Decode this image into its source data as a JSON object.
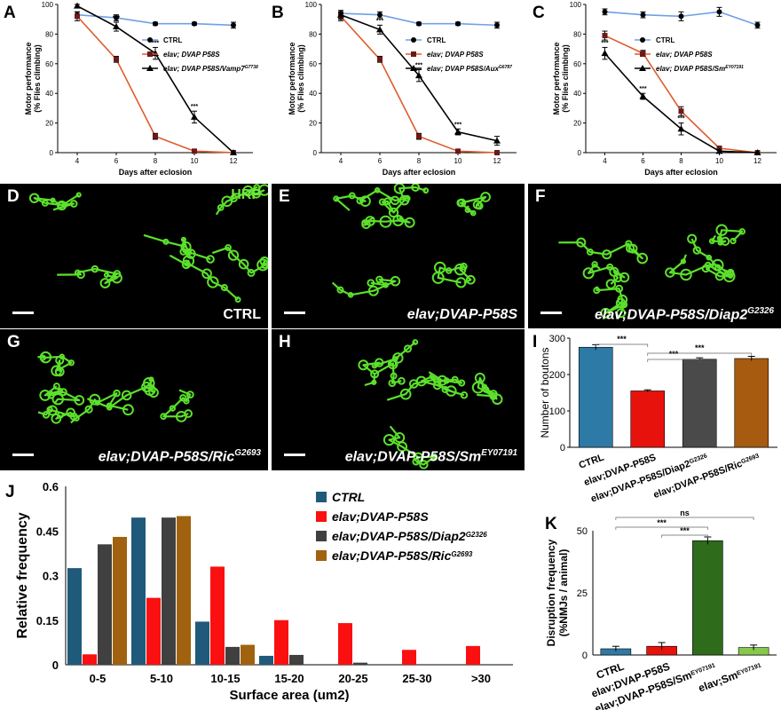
{
  "chart_data": [
    {
      "panel": "A",
      "type": "line",
      "xlabel": "Days after eclosion",
      "ylabel": "Motor performance (% Flies climbing)",
      "ylabel_lines": [
        "Motor performance",
        "(% Flies climbing)"
      ],
      "x": [
        4,
        6,
        8,
        10,
        12
      ],
      "ylim": [
        0,
        100
      ],
      "yticks": [
        0,
        20,
        40,
        60,
        80,
        100
      ],
      "series": [
        {
          "name": "CTRL",
          "marker": "circle",
          "color": "#6fa0e6",
          "values": [
            93,
            91,
            87,
            87,
            86
          ],
          "err": [
            2,
            2,
            1,
            1,
            2
          ]
        },
        {
          "name": "elav; DVAP P58S",
          "marker": "square",
          "color": "#e05a2b",
          "values": [
            92,
            63,
            11,
            1,
            0
          ],
          "err": [
            3,
            2,
            2,
            1,
            0
          ]
        },
        {
          "name": "elav; DVAP P58S/Vamp7",
          "name_sup": "G7738",
          "marker": "triangle",
          "color": "#000000",
          "values": [
            99,
            85,
            67,
            24,
            0
          ],
          "err": [
            1,
            3,
            4,
            4,
            0
          ]
        }
      ],
      "annotations": [
        {
          "x": 6,
          "text": "***"
        },
        {
          "x": 8,
          "text": "***"
        },
        {
          "x": 10,
          "text": "***"
        }
      ]
    },
    {
      "panel": "B",
      "type": "line",
      "xlabel": "Days after eclosion",
      "ylabel": "Motor performance (% Flies climbing)",
      "ylabel_lines": [
        "Motor performance",
        "(% Flies climbing)"
      ],
      "x": [
        4,
        6,
        8,
        10,
        12
      ],
      "ylim": [
        0,
        100
      ],
      "yticks": [
        0,
        20,
        40,
        60,
        80,
        100
      ],
      "series": [
        {
          "name": "CTRL",
          "marker": "circle",
          "color": "#6fa0e6",
          "values": [
            94,
            93,
            87,
            87,
            86
          ],
          "err": [
            1,
            2,
            1,
            1,
            2
          ]
        },
        {
          "name": "elav; DVAP P58S",
          "marker": "square",
          "color": "#e05a2b",
          "values": [
            92,
            63,
            11,
            1,
            0
          ],
          "err": [
            3,
            2,
            2,
            1,
            0
          ]
        },
        {
          "name": "elav; DVAP P58S/Aux",
          "name_sup": "G6787",
          "marker": "triangle",
          "color": "#000000",
          "values": [
            93,
            83,
            52,
            14,
            8
          ],
          "err": [
            3,
            3,
            4,
            2,
            3
          ]
        }
      ],
      "annotations": [
        {
          "x": 6,
          "text": "***"
        },
        {
          "x": 8,
          "text": "***"
        },
        {
          "x": 10,
          "text": "***"
        }
      ]
    },
    {
      "panel": "C",
      "type": "line",
      "xlabel": "Days after eclosion",
      "ylabel": "Motor performance (% Flies climbing)",
      "ylabel_lines": [
        "Motor performance",
        "(% Flies climbing)"
      ],
      "x": [
        4,
        6,
        8,
        10,
        12
      ],
      "ylim": [
        0,
        100
      ],
      "yticks": [
        0,
        20,
        40,
        60,
        80,
        100
      ],
      "series": [
        {
          "name": "CTRL",
          "marker": "circle",
          "color": "#6fa0e6",
          "values": [
            95,
            93,
            92,
            95,
            86
          ],
          "err": [
            2,
            2,
            3,
            3,
            2
          ]
        },
        {
          "name": "elav; DVAP P58S",
          "marker": "square",
          "color": "#e05a2b",
          "values": [
            79,
            67,
            28,
            3,
            0
          ],
          "err": [
            3,
            2,
            3,
            1,
            0
          ]
        },
        {
          "name": "elav; DVAP P58S/Sm",
          "name_sup": "EY07191",
          "marker": "triangle",
          "color": "#000000",
          "values": [
            67,
            38,
            16,
            1,
            0
          ],
          "err": [
            4,
            2,
            4,
            1,
            0
          ]
        }
      ],
      "annotations": [
        {
          "x": 4,
          "text": "***"
        },
        {
          "x": 6,
          "text": "***"
        },
        {
          "x": 8,
          "text": "***"
        }
      ]
    },
    {
      "panel": "I",
      "type": "bar",
      "ylabel": "Number of boutons",
      "ylim": [
        0,
        300
      ],
      "yticks": [
        0,
        100,
        200,
        300
      ],
      "categories": [
        "CTRL",
        "elav;DVAP-P58S",
        "elav;DVAP-P58S/Diap2",
        "elav;DVAP-P58S/Ric"
      ],
      "category_sups": [
        "",
        "",
        "G2326",
        "G2693"
      ],
      "values": [
        275,
        155,
        242,
        244
      ],
      "err": [
        7,
        3,
        4,
        6
      ],
      "colors": [
        "#2e7aa6",
        "#e8120c",
        "#4a4a4a",
        "#a65b10"
      ],
      "significance": [
        {
          "from": 0,
          "to": 1,
          "text": "***"
        },
        {
          "from": 1,
          "to": 2,
          "text": "***"
        },
        {
          "from": 1,
          "to": 3,
          "text": "***"
        }
      ]
    },
    {
      "panel": "J",
      "type": "bar",
      "xlabel": "Surface area (um2)",
      "ylabel": "Relative frequency",
      "ylim": [
        0,
        0.6
      ],
      "yticks": [
        0,
        0.15,
        0.3,
        0.45,
        0.6
      ],
      "ytick_labels": [
        "0",
        "0.15",
        "0.3",
        "0.45",
        "0.6"
      ],
      "categories": [
        "0-5",
        "5-10",
        "10-15",
        "15-20",
        "20-25",
        "25-30",
        ">30"
      ],
      "series": [
        {
          "name": "CTRL",
          "color": "#1f5a7a",
          "values": [
            0.325,
            0.495,
            0.145,
            0.03,
            0,
            0,
            0
          ]
        },
        {
          "name": "elav;DVAP-P58S",
          "color": "#fa1010",
          "values": [
            0.035,
            0.225,
            0.33,
            0.15,
            0.14,
            0.05,
            0.063
          ]
        },
        {
          "name": "elav;DVAP-P58S/Diap2",
          "name_sup": "G2326",
          "color": "#404040",
          "values": [
            0.405,
            0.495,
            0.06,
            0.033,
            0.007,
            0,
            0
          ]
        },
        {
          "name": "elav;DVAP-P58S/Ric",
          "name_sup": "G2693",
          "color": "#a0620f",
          "values": [
            0.43,
            0.5,
            0.067,
            0,
            0,
            0,
            0
          ]
        }
      ]
    },
    {
      "panel": "K",
      "type": "bar",
      "ylabel": "Disruption frequency (%NMJs / animal)",
      "ylabel_lines": [
        "Disruption frequency",
        "(%NMJs / animal)"
      ],
      "ylim": [
        0,
        50
      ],
      "yticks": [
        0,
        25,
        50
      ],
      "categories": [
        "CTRL",
        "elav;DVAP-P58S",
        "elav;DVAP-P58S/Sm",
        "elav;Sm"
      ],
      "category_sups": [
        "",
        "",
        "EY07191",
        "EY07191"
      ],
      "values": [
        2.5,
        3.5,
        46,
        3
      ],
      "err": [
        1,
        1.5,
        1.5,
        1
      ],
      "colors": [
        "#2e7aa6",
        "#e8120c",
        "#2e6b1a",
        "#86c84a"
      ],
      "significance": [
        {
          "from": 0,
          "to": 3,
          "text": "ns"
        },
        {
          "from": 0,
          "to": 2,
          "text": "***"
        },
        {
          "from": 1,
          "to": 2,
          "text": "***"
        }
      ]
    }
  ],
  "micrographs": [
    {
      "panel": "D",
      "stain": "HRP",
      "genotype": "CTRL",
      "genotype_sup": "",
      "italic": false
    },
    {
      "panel": "E",
      "genotype": "elav;DVAP-P58S",
      "genotype_sup": "",
      "italic": true
    },
    {
      "panel": "F",
      "genotype": "elav;DVAP-P58S/Diap2",
      "genotype_sup": "G2326",
      "italic": true
    },
    {
      "panel": "G",
      "genotype": "elav;DVAP-P58S/Ric",
      "genotype_sup": "G2693",
      "italic": true
    },
    {
      "panel": "H",
      "genotype": "elav;DVAP-P58S/Sm",
      "genotype_sup": "EY07191",
      "italic": true
    }
  ],
  "colors": {
    "micrograph_bg": "#000000",
    "neuron_green": "#5ce02c"
  }
}
